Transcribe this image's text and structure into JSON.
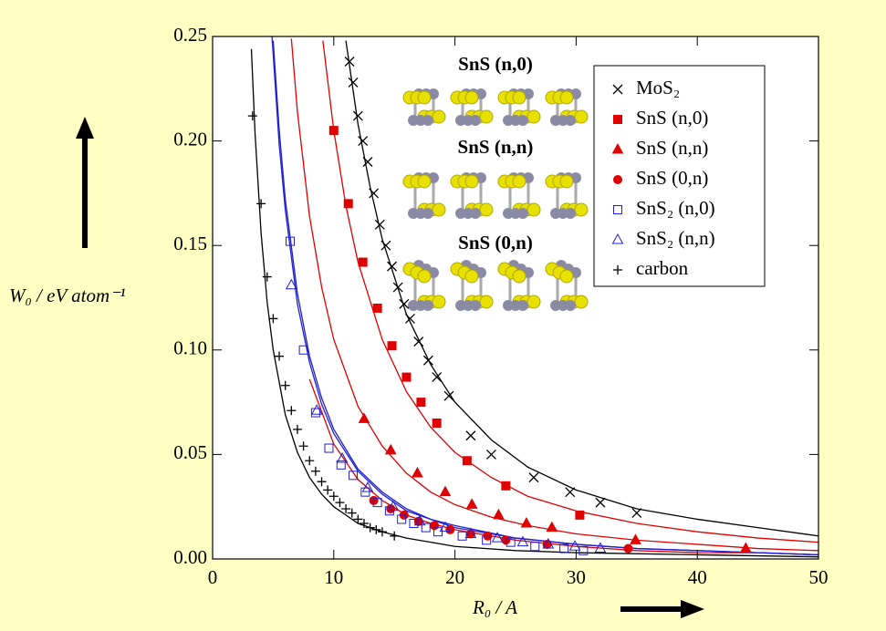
{
  "chart_data": {
    "type": "scatter",
    "x_label": "R₀ / A",
    "y_label": "W₀ / eV atom⁻¹",
    "annotations": [
      "SnS (n,0)",
      "SnS (n,n)",
      "SnS (0,n)"
    ],
    "xlim": [
      0,
      50
    ],
    "ylim": [
      0,
      0.25
    ],
    "xticks": [
      0,
      10,
      20,
      30,
      40,
      50
    ],
    "yticks": [
      {
        "value": 0,
        "label": "0.00"
      },
      {
        "value": 0.05,
        "label": "0.05"
      },
      {
        "value": 0.1,
        "label": "0.10"
      },
      {
        "value": 0.15,
        "label": "0.15"
      },
      {
        "value": 0.2,
        "label": "0.20"
      },
      {
        "value": 0.25,
        "label": "0.25"
      }
    ],
    "legend": "upper right",
    "series": [
      {
        "name": "MoS₂",
        "color": "#000000",
        "marker": "x",
        "x": [
          11.3,
          11.6,
          12,
          12.4,
          12.8,
          13.3,
          13.8,
          14.3,
          14.8,
          15.3,
          15.8,
          16.3,
          17,
          17.8,
          18.5,
          19.5,
          21.3,
          23,
          26.5,
          29.5,
          32,
          35
        ],
        "values": [
          0.238,
          0.228,
          0.212,
          0.2,
          0.19,
          0.175,
          0.16,
          0.15,
          0.14,
          0.13,
          0.122,
          0.115,
          0.104,
          0.095,
          0.087,
          0.078,
          0.059,
          0.05,
          0.039,
          0.032,
          0.027,
          0.022
        ],
        "fit": {
          "x": [
            11,
            12,
            13,
            14,
            16,
            18,
            20,
            23,
            26,
            30,
            35,
            40,
            45,
            50
          ],
          "values": [
            0.248,
            0.208,
            0.178,
            0.153,
            0.117,
            0.093,
            0.075,
            0.057,
            0.044,
            0.033,
            0.024,
            0.019,
            0.015,
            0.011
          ]
        }
      },
      {
        "name": "SnS (n,0)",
        "color": "#e00000",
        "marker": "square",
        "x": [
          10,
          11.2,
          12.4,
          13.6,
          14.8,
          16,
          17.2,
          18.5,
          21,
          24.2,
          30.3
        ],
        "values": [
          0.205,
          0.17,
          0.142,
          0.12,
          0.102,
          0.087,
          0.075,
          0.065,
          0.047,
          0.035,
          0.021
        ],
        "fit": {
          "x": [
            9.1,
            10,
            11,
            12,
            14,
            16,
            18,
            20,
            23,
            26,
            30,
            35,
            40,
            45,
            50
          ],
          "values": [
            0.248,
            0.205,
            0.169,
            0.142,
            0.105,
            0.08,
            0.063,
            0.051,
            0.039,
            0.03,
            0.023,
            0.017,
            0.013,
            0.01,
            0.008
          ]
        }
      },
      {
        "name": "SnS (n,n)",
        "color": "#e00000",
        "marker": "triangle",
        "x": [
          12.5,
          14.7,
          16.9,
          19.2,
          21.4,
          23.6,
          25.9,
          28,
          34.9,
          44
        ],
        "values": [
          0.067,
          0.052,
          0.041,
          0.032,
          0.026,
          0.021,
          0.017,
          0.015,
          0.009,
          0.005
        ],
        "fit": {
          "x": [
            6.5,
            7,
            8,
            9,
            10,
            12,
            14,
            16,
            18,
            20,
            23,
            26,
            30,
            35,
            40,
            45,
            50
          ],
          "values": [
            0.249,
            0.214,
            0.164,
            0.13,
            0.105,
            0.073,
            0.054,
            0.041,
            0.032,
            0.026,
            0.02,
            0.016,
            0.012,
            0.009,
            0.007,
            0.005,
            0.004
          ]
        }
      },
      {
        "name": "SnS (0,n)",
        "color": "#e00000",
        "marker": "circle",
        "x": [
          13.3,
          14.7,
          15.8,
          17,
          18.3,
          19.6,
          21.3,
          22.7,
          24.2,
          27.6,
          34.3
        ],
        "values": [
          0.028,
          0.024,
          0.021,
          0.018,
          0.016,
          0.014,
          0.012,
          0.011,
          0.009,
          0.007,
          0.005
        ],
        "fit": {
          "x": [
            8,
            10,
            12,
            14,
            16,
            18,
            20,
            25,
            30,
            35,
            40,
            45,
            50
          ],
          "values": [
            0.086,
            0.055,
            0.038,
            0.028,
            0.021,
            0.017,
            0.014,
            0.009,
            0.006,
            0.004,
            0.003,
            0.003,
            0.002
          ]
        }
      },
      {
        "name": "SnS₂ (n,0)",
        "color": "#2020d0",
        "marker": "square-open",
        "x": [
          6.4,
          7.5,
          8.5,
          9.6,
          10.6,
          11.6,
          12.6,
          13.6,
          14.6,
          15.6,
          16.6,
          17.6,
          18.6,
          20.6,
          22.6,
          24.6,
          26.6,
          29,
          30.6
        ],
        "values": [
          0.152,
          0.1,
          0.07,
          0.053,
          0.045,
          0.04,
          0.032,
          0.027,
          0.023,
          0.019,
          0.017,
          0.015,
          0.013,
          0.011,
          0.009,
          0.008,
          0.006,
          0.005,
          0.004
        ],
        "fit": {
          "x": [
            4.9,
            5.5,
            6,
            7,
            8,
            9,
            10,
            12,
            14,
            16,
            18,
            20,
            25,
            30,
            35,
            40,
            45,
            50
          ],
          "values": [
            0.25,
            0.198,
            0.167,
            0.122,
            0.094,
            0.074,
            0.06,
            0.042,
            0.031,
            0.023,
            0.019,
            0.015,
            0.01,
            0.007,
            0.005,
            0.004,
            0.003,
            0.002
          ]
        }
      },
      {
        "name": "SnS₂ (n,n)",
        "color": "#2020d0",
        "marker": "triangle-open",
        "x": [
          6.5,
          8.6,
          10.7,
          12.8,
          14.9,
          17.1,
          19.2,
          21.3,
          23.5,
          25.6,
          27.7,
          29.9,
          32
        ],
        "values": [
          0.131,
          0.071,
          0.048,
          0.034,
          0.025,
          0.018,
          0.015,
          0.012,
          0.01,
          0.008,
          0.007,
          0.006,
          0.005
        ],
        "fit": {
          "x": [
            5,
            5.5,
            6,
            7,
            8,
            9,
            10,
            12,
            14,
            16,
            18,
            20,
            25,
            30,
            35,
            40,
            45,
            50
          ],
          "values": [
            0.248,
            0.205,
            0.172,
            0.127,
            0.097,
            0.077,
            0.062,
            0.043,
            0.032,
            0.024,
            0.019,
            0.016,
            0.01,
            0.007,
            0.005,
            0.004,
            0.003,
            0.002
          ]
        }
      },
      {
        "name": "carbon",
        "color": "#000000",
        "marker": "plus",
        "x": [
          3.3,
          4,
          4.5,
          5,
          5.5,
          6,
          6.5,
          7,
          7.5,
          8,
          8.5,
          9,
          9.5,
          10,
          10.5,
          11,
          11.5,
          12,
          12.5,
          13,
          13.5,
          14,
          15
        ],
        "values": [
          0.212,
          0.17,
          0.135,
          0.115,
          0.097,
          0.083,
          0.071,
          0.062,
          0.054,
          0.047,
          0.042,
          0.037,
          0.033,
          0.03,
          0.027,
          0.024,
          0.022,
          0.019,
          0.017,
          0.015,
          0.014,
          0.013,
          0.011
        ],
        "fit": {
          "x": [
            3.2,
            3.5,
            4,
            4.5,
            5,
            6,
            7,
            8,
            9,
            10,
            12,
            14,
            16,
            18,
            20,
            25,
            30,
            40,
            50
          ],
          "values": [
            0.244,
            0.204,
            0.156,
            0.123,
            0.1,
            0.069,
            0.051,
            0.039,
            0.031,
            0.025,
            0.017,
            0.013,
            0.01,
            0.008,
            0.006,
            0.004,
            0.003,
            0.002,
            0.001
          ]
        }
      }
    ]
  }
}
